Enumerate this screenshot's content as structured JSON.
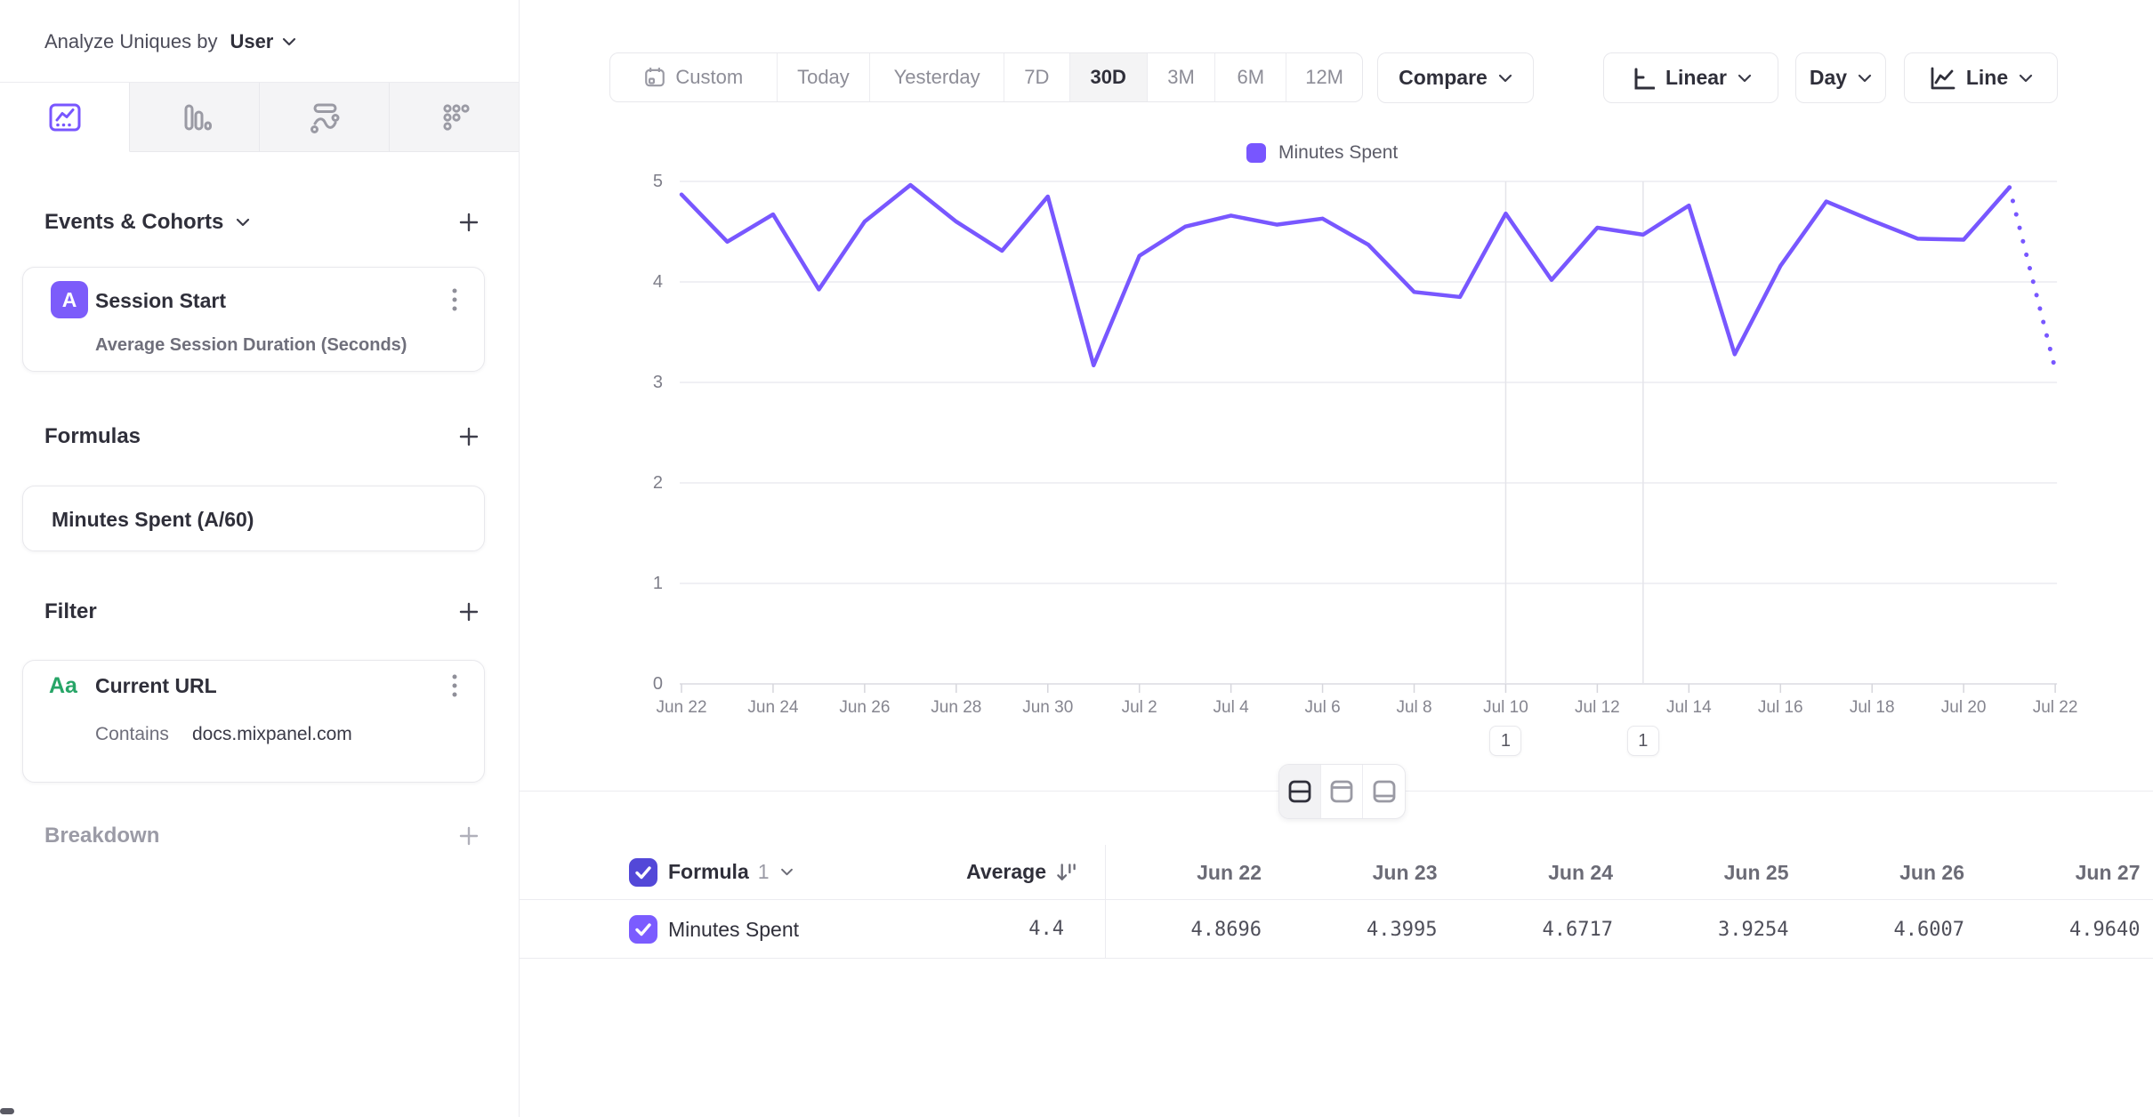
{
  "colors": {
    "accent": "#7856ff",
    "accent_light": "#7b5cff",
    "accent_dark": "#5348d8",
    "green": "#27a567",
    "border": "#e8e8ec",
    "grid": "#ececf0",
    "text_dark": "#2f2f3a",
    "text_gray": "#8d8d97"
  },
  "sidebar": {
    "analyze_label": "Analyze Uniques by",
    "analyze_value": "User",
    "tabs": [
      {
        "name": "insights-line-tab",
        "active": true
      },
      {
        "name": "bar-chart-tab",
        "active": false
      },
      {
        "name": "flow-tab",
        "active": false
      },
      {
        "name": "metrics-tab",
        "active": false
      }
    ],
    "events_heading": "Events & Cohorts",
    "event_card": {
      "badge": "A",
      "title": "Session Start",
      "subtitle": "Average Session Duration (Seconds)"
    },
    "formulas_heading": "Formulas",
    "formula_card": {
      "title": "Minutes Spent (A/60)"
    },
    "filter_heading": "Filter",
    "filter_card": {
      "badge": "Aa",
      "title": "Current URL",
      "operator": "Contains",
      "value": "docs.mixpanel.com"
    },
    "breakdown_heading": "Breakdown"
  },
  "toolbar": {
    "ranges": [
      "Custom",
      "Today",
      "Yesterday",
      "7D",
      "30D",
      "3M",
      "6M",
      "12M"
    ],
    "active_range": "30D",
    "compare_label": "Compare",
    "scale_label": "Linear",
    "interval_label": "Day",
    "chart_type_label": "Line"
  },
  "chart_data": {
    "type": "line",
    "series_name": "Minutes Spent",
    "legend_position": "top-center",
    "ylim": [
      0,
      5
    ],
    "yticks": [
      0,
      1,
      2,
      3,
      4,
      5
    ],
    "xtick_every": 2,
    "grid": "horizontal",
    "x": [
      "Jun 22",
      "Jun 23",
      "Jun 24",
      "Jun 25",
      "Jun 26",
      "Jun 27",
      "Jun 28",
      "Jun 29",
      "Jun 30",
      "Jul 1",
      "Jul 2",
      "Jul 3",
      "Jul 4",
      "Jul 5",
      "Jul 6",
      "Jul 7",
      "Jul 8",
      "Jul 9",
      "Jul 10",
      "Jul 11",
      "Jul 12",
      "Jul 13",
      "Jul 14",
      "Jul 15",
      "Jul 16",
      "Jul 17",
      "Jul 18",
      "Jul 19",
      "Jul 20",
      "Jul 21",
      "Jul 22"
    ],
    "values": [
      4.8696,
      4.3995,
      4.6717,
      3.9254,
      4.6007,
      4.964,
      4.6,
      4.31,
      4.85,
      3.17,
      4.26,
      4.55,
      4.66,
      4.57,
      4.63,
      4.37,
      3.9,
      3.85,
      4.68,
      4.02,
      4.54,
      4.47,
      4.76,
      3.28,
      4.16,
      4.8,
      4.61,
      4.43,
      4.42,
      4.94,
      3.13
    ],
    "dotted_from_index": 29,
    "annotations": [
      {
        "date": "Jul 10",
        "label": "1"
      },
      {
        "date": "Jul 13",
        "label": "1"
      }
    ]
  },
  "layout_toggle": {
    "options": [
      "split-view",
      "chart-only-view",
      "table-only-view"
    ],
    "active": "split-view"
  },
  "table": {
    "header": {
      "series_label": "Formula",
      "series_number": "1",
      "metric_col": "Average"
    },
    "date_columns": [
      "Jun 22",
      "Jun 23",
      "Jun 24",
      "Jun 25",
      "Jun 26",
      "Jun 27"
    ],
    "rows": [
      {
        "name": "Minutes Spent",
        "average": "4.4",
        "values": [
          "4.8696",
          "4.3995",
          "4.6717",
          "3.9254",
          "4.6007",
          "4.9640"
        ]
      }
    ]
  }
}
